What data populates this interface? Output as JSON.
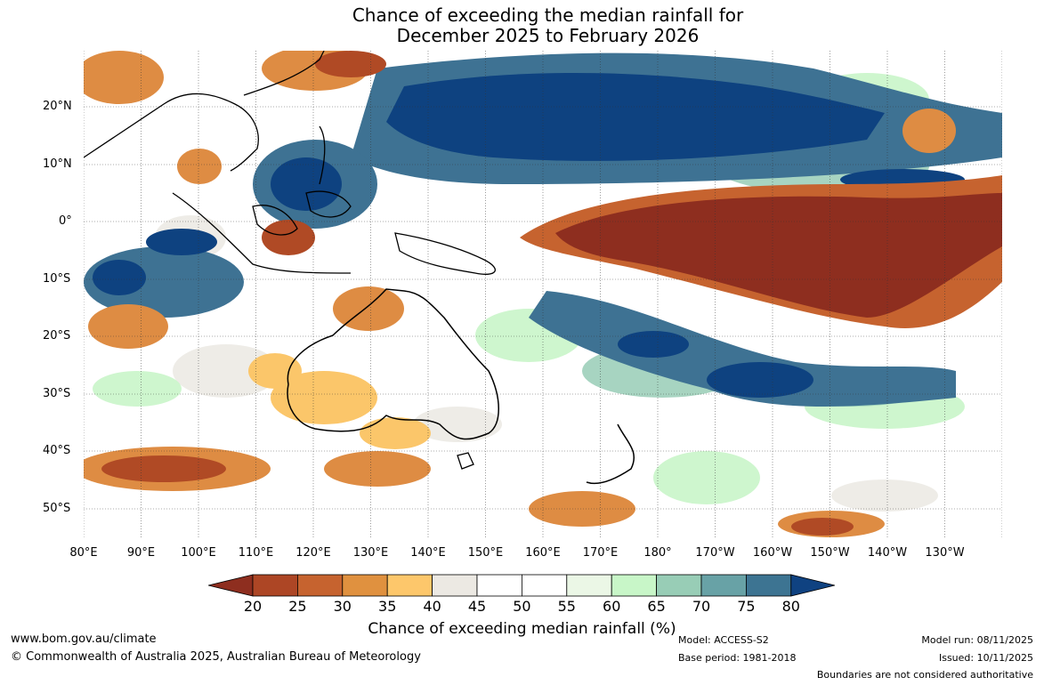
{
  "title": {
    "line1": "Chance of exceeding the median rainfall for",
    "line2": "December 2025 to February 2026"
  },
  "map": {
    "lat_labels": [
      "20°N",
      "10°N",
      "0°",
      "10°S",
      "20°S",
      "30°S",
      "40°S",
      "50°S"
    ],
    "lon_labels": [
      "80°E",
      "90°E",
      "100°E",
      "110°E",
      "120°E",
      "130°E",
      "140°E",
      "150°E",
      "160°E",
      "170°E",
      "180°",
      "170°W",
      "160°W",
      "150°W",
      "140°W",
      "130°W"
    ],
    "gridlines": true,
    "colors": {
      "below": "#8e2e1f",
      "dry1": "#b04a25",
      "dry2": "#c96531",
      "dry3": "#de8c43",
      "dry4": "#fbc66a",
      "neutral1": "#eceae4",
      "neutral2": "#ffffff",
      "neutral3": "#ffffff",
      "wet1": "#e8f7e5",
      "wet2": "#c6f5c6",
      "wet3": "#99cdb6",
      "wet4": "#6ba3a6",
      "wet5": "#3e7293",
      "above": "#0e4280"
    }
  },
  "colorbar": {
    "ticks": [
      "20",
      "25",
      "30",
      "35",
      "40",
      "45",
      "50",
      "55",
      "60",
      "65",
      "70",
      "75",
      "80"
    ],
    "colors": [
      "#8e2e1f",
      "#ad4625",
      "#c6632f",
      "#e0913f",
      "#fdc76b",
      "#ece9e3",
      "#ffffff",
      "#ffffff",
      "#ebf7e6",
      "#c8f6c8",
      "#98cdb6",
      "#68a2a6",
      "#3d7492",
      "#0f4281"
    ],
    "label": "Chance of exceeding median rainfall (%)"
  },
  "footer": {
    "url": "www.bom.gov.au/climate",
    "copyright": "© Commonwealth of Australia 2025, Australian Bureau of Meteorology",
    "model": "Model: ACCESS-S2",
    "base_period": "Base period: 1981-2018",
    "model_run": "Model run: 08/11/2025",
    "issued": "Issued: 10/11/2025",
    "disclaimer": "Boundaries are not considered authoritative"
  }
}
